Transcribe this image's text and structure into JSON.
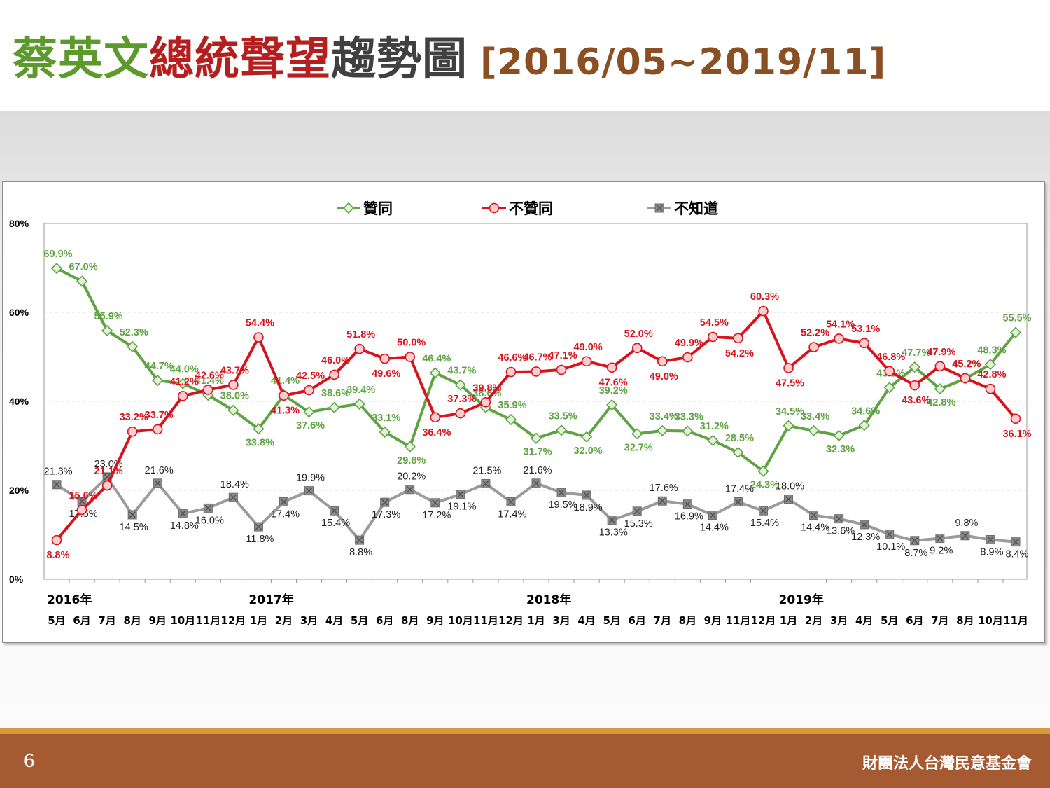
{
  "slide": {
    "title_part1": "蔡英文",
    "title_part2": "總統聲望",
    "title_part3": "趨勢圖",
    "title_range": "[2016/05~2019/11]",
    "page_number": "6",
    "organization": "財團法人台灣民意基金會"
  },
  "colors": {
    "approve": "#5fa343",
    "disapprove": "#d7131d",
    "unknown": "#9b9b9b",
    "title_green": "#5b9a2b",
    "title_red": "#b51f1f",
    "title_brown": "#8a4f22",
    "footer": "#a55a32"
  },
  "chart_data": {
    "type": "line",
    "ylim": [
      0,
      80
    ],
    "y_ticks": [
      "0%",
      "20%",
      "40%",
      "60%",
      "80%"
    ],
    "grid": true,
    "legend_position": "top",
    "categories": [
      "5月",
      "6月",
      "7月",
      "8月",
      "9月",
      "10月",
      "11月",
      "12月",
      "1月",
      "2月",
      "3月",
      "4月",
      "5月",
      "6月",
      "8月",
      "9月",
      "10月",
      "11月",
      "12月",
      "1月",
      "3月",
      "4月",
      "5月",
      "6月",
      "7月",
      "8月",
      "9月",
      "11月",
      "12月",
      "1月",
      "2月",
      "3月",
      "4月",
      "5月",
      "6月",
      "7月",
      "8月",
      "10月",
      "11月"
    ],
    "year_labels": [
      {
        "text": "2016年",
        "index": 0
      },
      {
        "text": "2017年",
        "index": 8
      },
      {
        "text": "2018年",
        "index": 19
      },
      {
        "text": "2019年",
        "index": 29
      }
    ],
    "series": [
      {
        "name": "贊同",
        "color": "#5fa343",
        "marker": "diamond",
        "values": [
          69.9,
          67.0,
          55.9,
          52.3,
          44.7,
          44.0,
          41.4,
          38.0,
          33.8,
          41.4,
          37.6,
          38.6,
          39.4,
          33.1,
          29.8,
          46.4,
          43.7,
          38.6,
          35.9,
          31.7,
          33.5,
          32.0,
          39.2,
          32.7,
          33.4,
          33.3,
          31.2,
          28.5,
          24.3,
          34.5,
          33.4,
          32.3,
          34.6,
          43.1,
          47.7,
          42.8,
          45.1,
          48.3,
          55.5
        ]
      },
      {
        "name": "不贊同",
        "color": "#d7131d",
        "marker": "circle",
        "values": [
          8.8,
          15.6,
          21.1,
          33.2,
          33.7,
          41.2,
          42.6,
          43.7,
          54.4,
          41.3,
          42.5,
          46.0,
          51.8,
          49.6,
          50.0,
          36.4,
          37.3,
          39.8,
          46.6,
          46.7,
          47.1,
          49.0,
          47.6,
          52.0,
          49.0,
          49.9,
          54.5,
          54.2,
          60.3,
          47.5,
          52.2,
          54.1,
          53.1,
          46.8,
          43.6,
          47.9,
          45.2,
          42.8,
          36.1
        ]
      },
      {
        "name": "不知道",
        "color": "#9b9b9b",
        "marker": "x-square",
        "values": [
          21.3,
          17.5,
          23.0,
          14.5,
          21.6,
          14.8,
          16.0,
          18.4,
          11.8,
          17.4,
          19.9,
          15.4,
          8.8,
          17.3,
          20.2,
          17.2,
          19.1,
          21.5,
          17.4,
          21.6,
          19.5,
          18.9,
          13.3,
          15.3,
          17.6,
          16.9,
          14.4,
          17.4,
          15.4,
          18.0,
          14.4,
          13.6,
          12.3,
          10.1,
          8.7,
          9.2,
          9.8,
          8.9,
          8.4
        ]
      }
    ]
  }
}
